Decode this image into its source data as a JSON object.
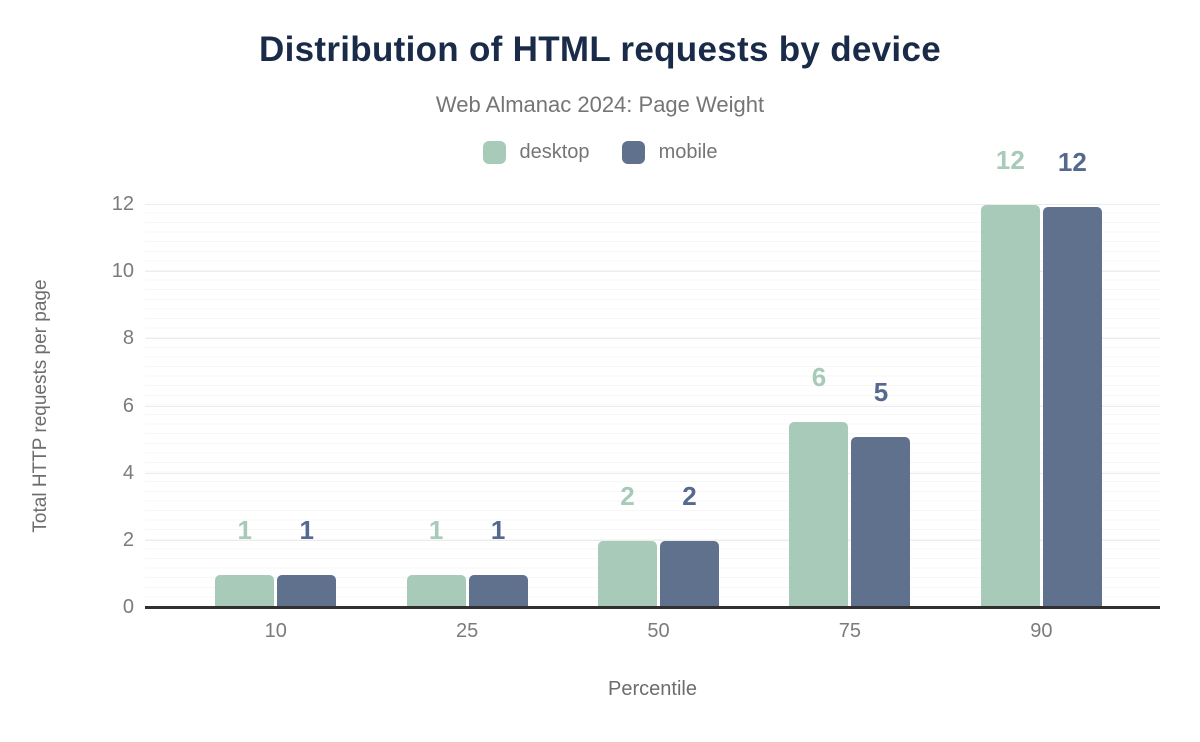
{
  "chart_data": {
    "type": "bar",
    "title": "Distribution of HTML requests by device",
    "subtitle": "Web Almanac 2024: Page Weight",
    "xlabel": "Percentile",
    "ylabel": "Total HTTP requests per page",
    "categories": [
      "10",
      "25",
      "50",
      "75",
      "90"
    ],
    "series": [
      {
        "name": "desktop",
        "color": "#a8cab8",
        "label_color": "#a8cab8",
        "values": [
          0.95,
          0.95,
          1.97,
          5.5,
          11.97
        ],
        "value_labels": [
          "1",
          "1",
          "2",
          "6",
          "12"
        ]
      },
      {
        "name": "mobile",
        "color": "#5f718c",
        "label_color": "#546890",
        "values": [
          0.95,
          0.95,
          1.97,
          5.05,
          11.9
        ],
        "value_labels": [
          "1",
          "1",
          "2",
          "5",
          "12"
        ]
      }
    ],
    "ylim": [
      0,
      12
    ],
    "y_ticks": [
      0,
      2,
      4,
      6,
      8,
      10,
      12
    ],
    "grid": "horizontal major+minor",
    "legend_position": "top-center"
  },
  "colors": {
    "title": "#1a2b49",
    "subtitle": "#757575",
    "tick_label": "#7b7b7b",
    "axis_title": "#6d6d6d",
    "axis_line": "#303030",
    "grid_major": "#ececec",
    "grid_minor": "#f7f7f7",
    "background": "#ffffff"
  }
}
